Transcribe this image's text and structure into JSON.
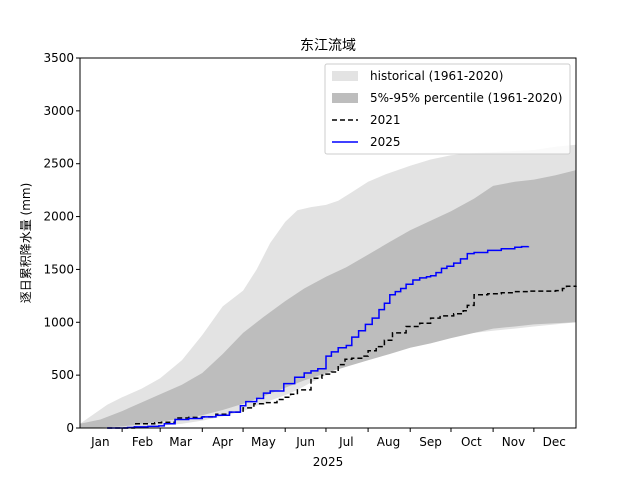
{
  "chart_data": {
    "type": "area",
    "title": "东江流域",
    "xlabel": "2025",
    "ylabel": "逐日累积降水量 (mm)",
    "ylim": [
      0,
      3500
    ],
    "xlim_days": [
      0,
      365
    ],
    "yticks": [
      0,
      500,
      1000,
      1500,
      2000,
      2500,
      3000,
      3500
    ],
    "ytick_labels": [
      "0",
      "500",
      "1000",
      "1500",
      "2000",
      "2500",
      "3000",
      "3500"
    ],
    "month_labels": [
      "Jan",
      "Feb",
      "Mar",
      "Apr",
      "May",
      "Jun",
      "Jul",
      "Aug",
      "Sep",
      "Oct",
      "Nov",
      "Dec"
    ],
    "month_label_days": [
      15,
      46,
      74,
      105,
      135,
      166,
      196,
      227,
      258,
      288,
      319,
      349
    ],
    "month_tick_days": [
      31,
      59,
      90,
      120,
      151,
      181,
      212,
      243,
      273,
      304,
      334
    ],
    "legend_position": "upper right",
    "grid": false,
    "series": [
      {
        "name": "historical (1961-2020)",
        "kind": "band",
        "color": "#e3e3e3",
        "x": [
          0,
          10,
          20,
          31,
          45,
          59,
          75,
          90,
          105,
          120,
          130,
          140,
          151,
          160,
          170,
          181,
          190,
          200,
          212,
          225,
          243,
          258,
          273,
          290,
          304,
          320,
          334,
          350,
          365
        ],
        "lower": [
          0,
          0,
          0,
          5,
          10,
          20,
          40,
          70,
          110,
          160,
          210,
          260,
          310,
          360,
          430,
          500,
          570,
          620,
          680,
          730,
          800,
          860,
          880,
          900,
          920,
          940,
          960,
          980,
          1000
        ],
        "upper": [
          40,
          130,
          220,
          290,
          370,
          470,
          640,
          880,
          1150,
          1300,
          1500,
          1750,
          1950,
          2060,
          2090,
          2110,
          2150,
          2230,
          2330,
          2400,
          2480,
          2540,
          2580,
          2600,
          2610,
          2620,
          2630,
          2660,
          2680
        ]
      },
      {
        "name": "5%-95% percentile (1961-2020)",
        "kind": "band",
        "color": "#bdbdbd",
        "x": [
          0,
          15,
          31,
          45,
          59,
          75,
          90,
          105,
          120,
          135,
          151,
          165,
          181,
          196,
          212,
          228,
          243,
          258,
          273,
          290,
          304,
          320,
          334,
          350,
          365
        ],
        "lower": [
          0,
          5,
          15,
          35,
          60,
          90,
          120,
          170,
          230,
          300,
          380,
          450,
          520,
          580,
          640,
          700,
          760,
          800,
          850,
          900,
          940,
          960,
          980,
          990,
          1000
        ],
        "upper": [
          40,
          80,
          160,
          240,
          320,
          410,
          520,
          700,
          900,
          1050,
          1200,
          1320,
          1430,
          1520,
          1640,
          1760,
          1870,
          1960,
          2050,
          2170,
          2290,
          2330,
          2350,
          2390,
          2440
        ]
      },
      {
        "name": "2021",
        "kind": "line",
        "style": "dashed",
        "color": "#000000",
        "x": [
          20,
          40,
          55,
          60,
          70,
          80,
          90,
          100,
          110,
          120,
          128,
          135,
          145,
          150,
          155,
          160,
          170,
          178,
          181,
          185,
          190,
          195,
          200,
          208,
          212,
          218,
          224,
          230,
          240,
          250,
          258,
          265,
          275,
          282,
          285,
          290,
          300,
          310,
          320,
          330,
          340,
          350,
          355,
          358,
          365
        ],
        "y": [
          0,
          40,
          50,
          55,
          95,
          100,
          105,
          130,
          150,
          190,
          230,
          240,
          270,
          290,
          320,
          360,
          470,
          500,
          510,
          530,
          600,
          650,
          660,
          680,
          730,
          770,
          830,
          900,
          960,
          990,
          1040,
          1060,
          1080,
          1110,
          1160,
          1260,
          1270,
          1280,
          1290,
          1295,
          1295,
          1300,
          1320,
          1340,
          1345
        ]
      },
      {
        "name": "2025",
        "kind": "line",
        "style": "solid",
        "color": "#0000ff",
        "x": [
          20,
          35,
          40,
          50,
          58,
          62,
          70,
          80,
          90,
          100,
          110,
          118,
          122,
          130,
          135,
          140,
          150,
          158,
          165,
          170,
          175,
          181,
          185,
          190,
          196,
          200,
          205,
          210,
          215,
          220,
          224,
          228,
          232,
          236,
          240,
          245,
          250,
          255,
          258,
          262,
          266,
          270,
          275,
          280,
          285,
          290,
          300,
          310,
          320,
          325,
          330
        ],
        "y": [
          0,
          5,
          10,
          15,
          20,
          40,
          80,
          90,
          105,
          120,
          150,
          210,
          250,
          280,
          330,
          350,
          420,
          480,
          520,
          540,
          560,
          680,
          720,
          760,
          780,
          860,
          920,
          980,
          1040,
          1120,
          1180,
          1260,
          1290,
          1320,
          1360,
          1400,
          1420,
          1430,
          1440,
          1470,
          1510,
          1530,
          1560,
          1600,
          1650,
          1660,
          1680,
          1695,
          1710,
          1716,
          1720
        ]
      }
    ]
  }
}
